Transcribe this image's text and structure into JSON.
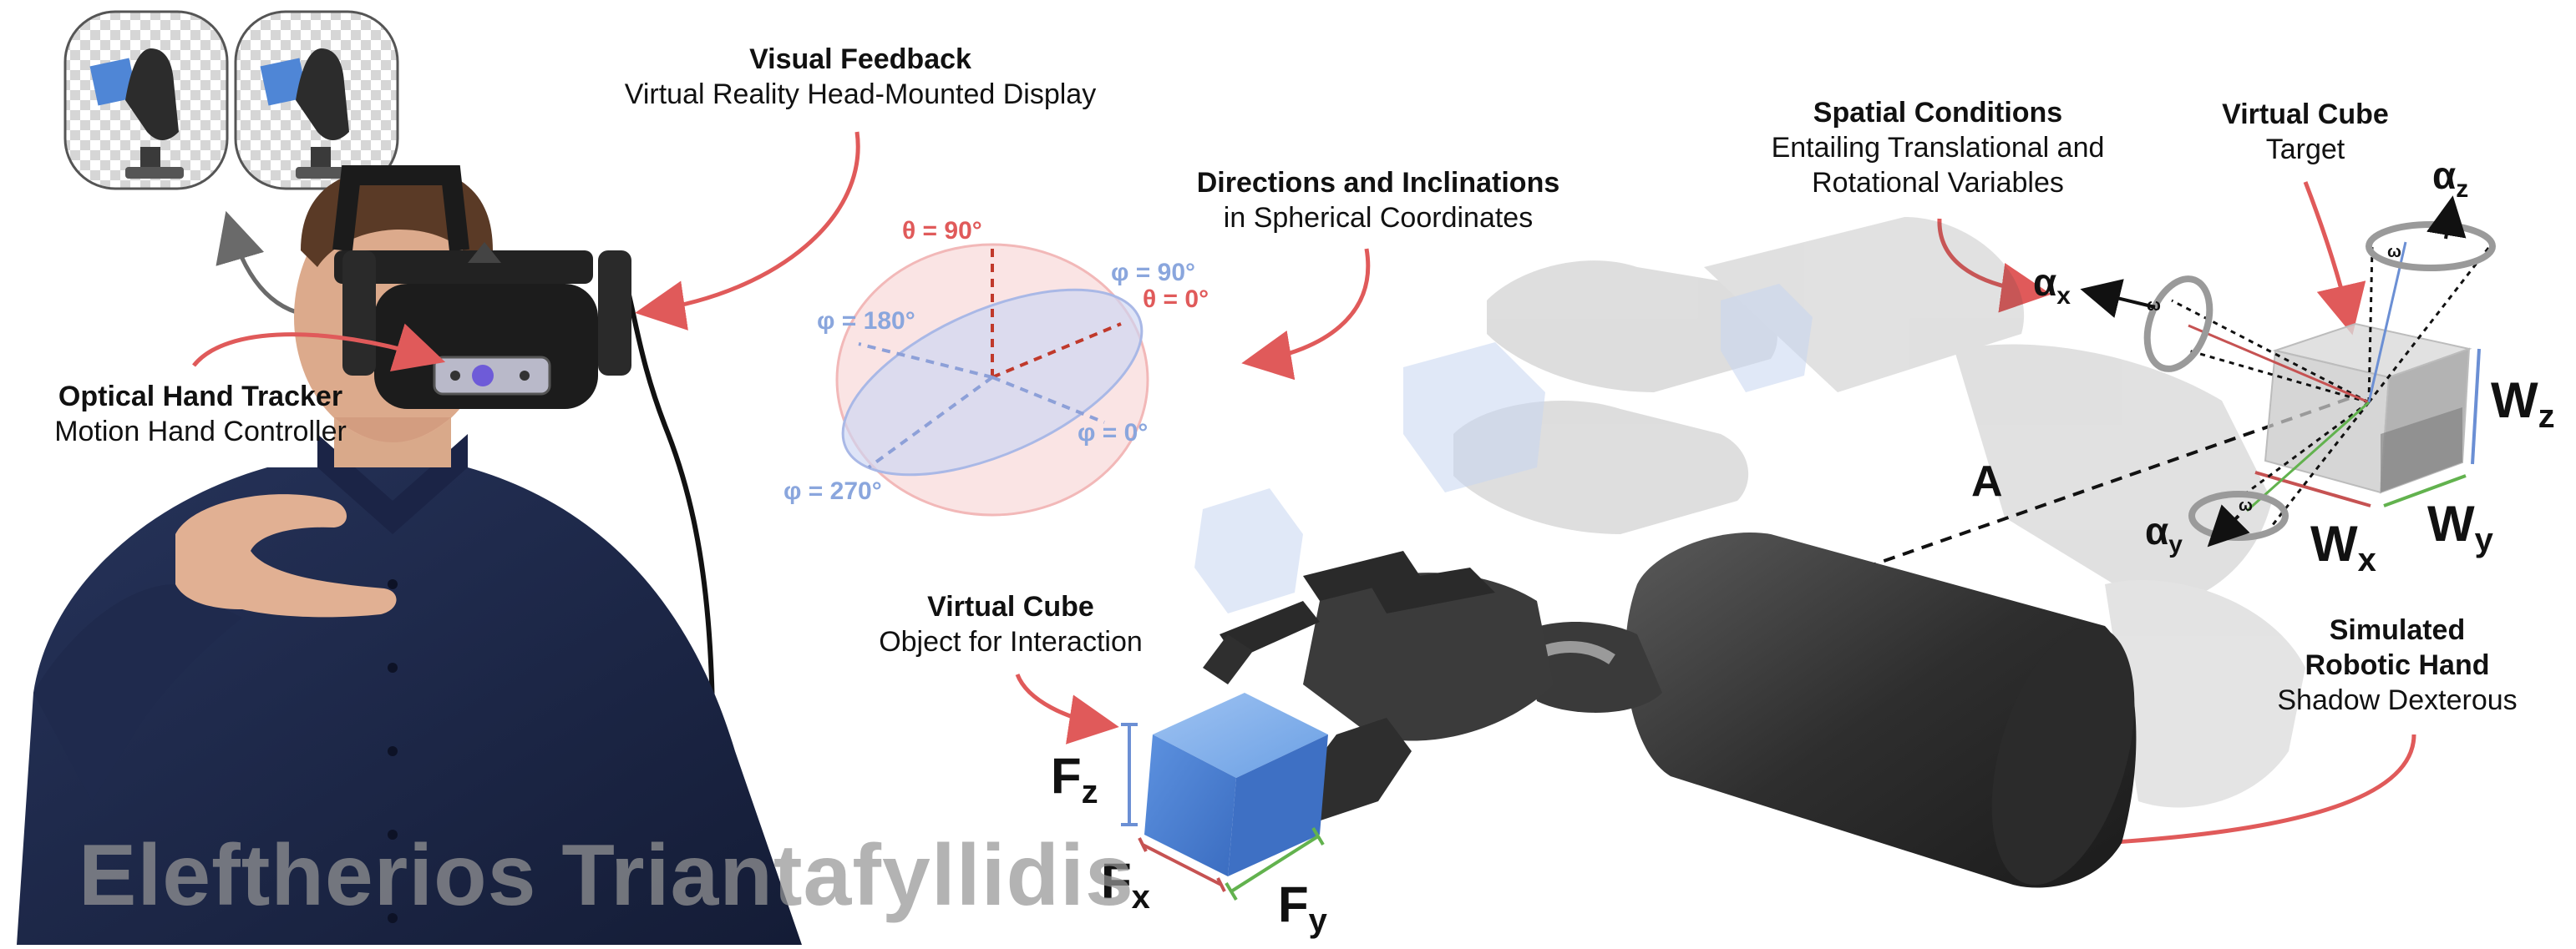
{
  "labels": {
    "visual_feedback": {
      "title": "Visual Feedback",
      "subtitle": "Virtual Reality Head-Mounted Display"
    },
    "optical_tracker": {
      "title": "Optical Hand Tracker",
      "subtitle": "Motion Hand Controller"
    },
    "directions": {
      "title": "Directions and Inclinations",
      "subtitle": "in Spherical Coordinates"
    },
    "spatial": {
      "title": "Spatial Conditions",
      "line2": "Entailing Translational and",
      "line3": "Rotational Variables"
    },
    "virtual_cube_target": {
      "title": "Virtual Cube",
      "subtitle": "Target"
    },
    "virtual_cube_object": {
      "title": "Virtual Cube",
      "subtitle": "Object for Interaction"
    },
    "robotic_hand": {
      "title1": "Simulated",
      "title2": "Robotic Hand",
      "subtitle": "Shadow Dexterous"
    }
  },
  "sphere": {
    "theta_90": "θ = 90°",
    "theta_0": "θ = 0°",
    "phi_90": "φ = 90°",
    "phi_180": "φ = 180°",
    "phi_0": "φ = 0°",
    "phi_270": "φ = 270°"
  },
  "forces": {
    "main": "F",
    "z": "z",
    "x": "x",
    "y": "y"
  },
  "torques": {
    "main": "W",
    "z": "z",
    "x": "x",
    "y": "y"
  },
  "rotations": {
    "main": "α",
    "x": "x",
    "y": "y",
    "z": "z",
    "omega": "ω"
  },
  "distance_label": "A",
  "watermark": "Eleftherios Triantafyllidis",
  "colors": {
    "accent_red": "#e05a5a",
    "sphere_red": "#f2b8b8",
    "sphere_blue": "#a9b8e6",
    "cube_blue": "#4f86d6",
    "green": "#62b24e"
  }
}
